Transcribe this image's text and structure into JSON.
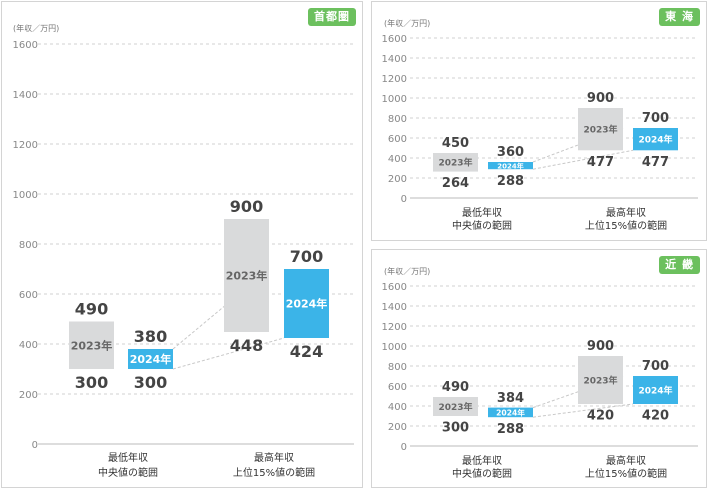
{
  "chart_data": [
    {
      "id": "shutoken",
      "type": "bar",
      "title": "首都圏",
      "unit_label": "(年収／万円)",
      "y_ticks": [
        0,
        200,
        400,
        600,
        800,
        1000,
        1200,
        1400,
        1600
      ],
      "ylim": [
        0,
        1600
      ],
      "categories": [
        {
          "line1": "最低年収",
          "line2": "中央値の範囲"
        },
        {
          "line1": "最高年収",
          "line2": "上位15%値の範囲"
        }
      ],
      "series": [
        {
          "name": "2023年",
          "color": "#d9dadb",
          "text_color": "#666666",
          "ranges": [
            {
              "low": 300,
              "high": 490
            },
            {
              "low": 448,
              "high": 900
            }
          ]
        },
        {
          "name": "2024年",
          "color": "#3bb4e8",
          "text_color": "#ffffff",
          "ranges": [
            {
              "low": 300,
              "high": 380
            },
            {
              "low": 424,
              "high": 700
            }
          ]
        }
      ],
      "labels": {
        "g0_2023_high": "490",
        "g0_2023_low": "300",
        "g0_2024_high": "380",
        "g0_2024_low": "300",
        "g1_2023_high": "900",
        "g1_2023_low": "448",
        "g1_2024_high": "700",
        "g1_2024_low": "424"
      },
      "grid": true
    },
    {
      "id": "tokai",
      "type": "bar",
      "title": "東 海",
      "unit_label": "(年収／万円)",
      "y_ticks": [
        0,
        200,
        400,
        600,
        800,
        1000,
        1200,
        1400,
        1600
      ],
      "ylim": [
        0,
        1600
      ],
      "categories": [
        {
          "line1": "最低年収",
          "line2": "中央値の範囲"
        },
        {
          "line1": "最高年収",
          "line2": "上位15%値の範囲"
        }
      ],
      "series": [
        {
          "name": "2023年",
          "color": "#d9dadb",
          "text_color": "#666666",
          "ranges": [
            {
              "low": 264,
              "high": 450
            },
            {
              "low": 477,
              "high": 900
            }
          ]
        },
        {
          "name": "2024年",
          "color": "#3bb4e8",
          "text_color": "#ffffff",
          "ranges": [
            {
              "low": 288,
              "high": 360
            },
            {
              "low": 477,
              "high": 700
            }
          ]
        }
      ],
      "labels": {
        "g0_2023_high": "450",
        "g0_2023_low": "264",
        "g0_2024_high": "360",
        "g0_2024_low": "288",
        "g1_2023_high": "900",
        "g1_2023_low": "477",
        "g1_2024_high": "700",
        "g1_2024_low": "477"
      },
      "grid": true
    },
    {
      "id": "kinki",
      "type": "bar",
      "title": "近 畿",
      "unit_label": "(年収／万円)",
      "y_ticks": [
        0,
        200,
        400,
        600,
        800,
        1000,
        1200,
        1400,
        1600
      ],
      "ylim": [
        0,
        1600
      ],
      "categories": [
        {
          "line1": "最低年収",
          "line2": "中央値の範囲"
        },
        {
          "line1": "最高年収",
          "line2": "上位15%値の範囲"
        }
      ],
      "series": [
        {
          "name": "2023年",
          "color": "#d9dadb",
          "text_color": "#666666",
          "ranges": [
            {
              "low": 300,
              "high": 490
            },
            {
              "low": 420,
              "high": 900
            }
          ]
        },
        {
          "name": "2024年",
          "color": "#3bb4e8",
          "text_color": "#ffffff",
          "ranges": [
            {
              "low": 288,
              "high": 384
            },
            {
              "low": 420,
              "high": 700
            }
          ]
        }
      ],
      "labels": {
        "g0_2023_high": "490",
        "g0_2023_low": "300",
        "g0_2024_high": "384",
        "g0_2024_low": "288",
        "g1_2023_high": "900",
        "g1_2023_low": "420",
        "g1_2024_high": "700",
        "g1_2024_low": "420"
      },
      "grid": true
    }
  ]
}
